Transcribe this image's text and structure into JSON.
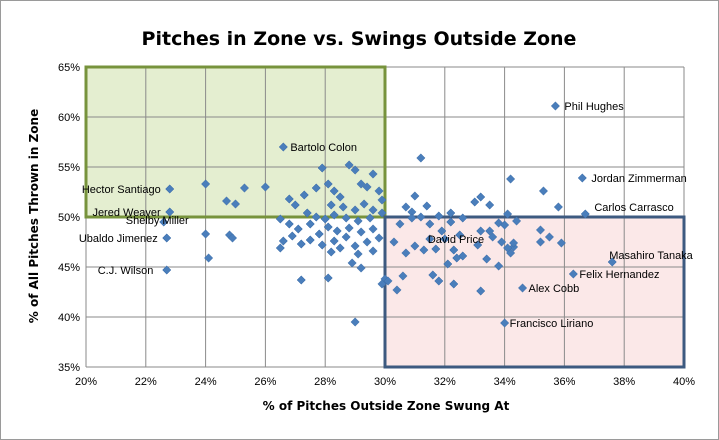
{
  "chart_data": {
    "type": "scatter",
    "title": "Pitches in Zone vs. Swings Outside Zone",
    "xlabel": "% of Pitches Outside Zone Swung At",
    "ylabel": "% of All Pitches Thrown in Zone",
    "xlim": [
      20,
      40
    ],
    "ylim": [
      35,
      65
    ],
    "x_ticks": [
      "20%",
      "22%",
      "24%",
      "26%",
      "28%",
      "30%",
      "32%",
      "34%",
      "36%",
      "38%",
      "40%"
    ],
    "y_ticks": [
      "35%",
      "40%",
      "45%",
      "50%",
      "55%",
      "60%",
      "65%"
    ],
    "grid": true,
    "marker_color": "#4a7ebb",
    "regions": [
      {
        "x": [
          20,
          30
        ],
        "y": [
          50,
          65
        ],
        "fill": "#e4eed0",
        "stroke": "#77933c"
      },
      {
        "x": [
          30,
          40
        ],
        "y": [
          35,
          50
        ],
        "fill": "#fbe8e8",
        "stroke": "#3d5a80"
      }
    ],
    "labeled_points": [
      {
        "name": "Phil Hughes",
        "x": 35.7,
        "y": 61.1
      },
      {
        "name": "Bartolo Colon",
        "x": 26.6,
        "y": 57.0
      },
      {
        "name": "Jordan Zimmerman",
        "x": 36.6,
        "y": 53.9
      },
      {
        "name": "Hector Santiago",
        "x": 22.8,
        "y": 52.8
      },
      {
        "name": "Jered Weaver",
        "x": 22.8,
        "y": 50.5
      },
      {
        "name": "Carlos Carrasco",
        "x": 36.7,
        "y": 50.3
      },
      {
        "name": "Shelby Miller",
        "x": 22.6,
        "y": 49.5
      },
      {
        "name": "Ubaldo Jimenez",
        "x": 22.7,
        "y": 47.9
      },
      {
        "name": "David Price",
        "x": 31.5,
        "y": 47.8
      },
      {
        "name": "Masahiro Tanaka",
        "x": 37.6,
        "y": 45.5
      },
      {
        "name": "C.J. Wilson",
        "x": 22.7,
        "y": 44.7
      },
      {
        "name": "Felix Hernandez",
        "x": 36.3,
        "y": 44.3
      },
      {
        "name": "Alex Cobb",
        "x": 34.6,
        "y": 42.9
      },
      {
        "name": "Francisco Liriano",
        "x": 34.0,
        "y": 39.4
      }
    ],
    "points": [
      [
        24.0,
        53.3
      ],
      [
        25.3,
        52.9
      ],
      [
        26.0,
        53.0
      ],
      [
        24.7,
        51.6
      ],
      [
        25.0,
        51.3
      ],
      [
        26.8,
        51.8
      ],
      [
        27.0,
        51.2
      ],
      [
        27.3,
        52.2
      ],
      [
        27.7,
        52.9
      ],
      [
        27.9,
        54.9
      ],
      [
        28.1,
        53.3
      ],
      [
        28.3,
        52.6
      ],
      [
        28.5,
        52.0
      ],
      [
        28.8,
        55.2
      ],
      [
        29.0,
        54.7
      ],
      [
        29.2,
        53.3
      ],
      [
        29.4,
        53.0
      ],
      [
        29.6,
        54.3
      ],
      [
        29.8,
        52.6
      ],
      [
        29.9,
        51.7
      ],
      [
        28.2,
        51.2
      ],
      [
        28.6,
        51.0
      ],
      [
        29.0,
        50.7
      ],
      [
        29.3,
        51.3
      ],
      [
        29.6,
        50.7
      ],
      [
        29.9,
        50.4
      ],
      [
        27.4,
        50.4
      ],
      [
        27.7,
        50.0
      ],
      [
        28.0,
        49.8
      ],
      [
        28.3,
        50.2
      ],
      [
        28.7,
        49.9
      ],
      [
        29.1,
        49.6
      ],
      [
        29.5,
        49.9
      ],
      [
        26.5,
        49.8
      ],
      [
        26.8,
        49.3
      ],
      [
        27.1,
        48.8
      ],
      [
        27.5,
        49.3
      ],
      [
        27.8,
        48.3
      ],
      [
        28.1,
        49.0
      ],
      [
        28.4,
        48.6
      ],
      [
        28.8,
        48.9
      ],
      [
        29.2,
        48.5
      ],
      [
        29.6,
        48.8
      ],
      [
        26.6,
        47.6
      ],
      [
        26.9,
        48.1
      ],
      [
        27.2,
        47.3
      ],
      [
        27.5,
        47.7
      ],
      [
        27.9,
        47.2
      ],
      [
        28.3,
        47.6
      ],
      [
        28.7,
        48.0
      ],
      [
        29.0,
        47.1
      ],
      [
        29.4,
        47.5
      ],
      [
        29.8,
        47.9
      ],
      [
        26.5,
        46.9
      ],
      [
        28.2,
        46.5
      ],
      [
        28.5,
        46.9
      ],
      [
        29.1,
        46.3
      ],
      [
        29.6,
        46.6
      ],
      [
        24.0,
        48.3
      ],
      [
        24.8,
        48.2
      ],
      [
        24.9,
        47.9
      ],
      [
        24.1,
        45.9
      ],
      [
        27.2,
        43.7
      ],
      [
        28.1,
        43.9
      ],
      [
        28.9,
        45.4
      ],
      [
        29.2,
        44.9
      ],
      [
        30.0,
        43.8
      ],
      [
        29.9,
        43.3
      ],
      [
        30.1,
        43.6
      ],
      [
        29.0,
        39.5
      ],
      [
        30.4,
        42.7
      ],
      [
        30.6,
        44.1
      ],
      [
        30.3,
        47.5
      ],
      [
        30.7,
        46.4
      ],
      [
        31.0,
        47.1
      ],
      [
        31.3,
        46.7
      ],
      [
        30.5,
        49.3
      ],
      [
        30.9,
        50.5
      ],
      [
        31.2,
        50.0
      ],
      [
        31.5,
        49.3
      ],
      [
        31.9,
        48.6
      ],
      [
        32.2,
        49.5
      ],
      [
        30.7,
        51.0
      ],
      [
        31.0,
        52.1
      ],
      [
        31.4,
        51.1
      ],
      [
        31.8,
        50.1
      ],
      [
        32.2,
        50.4
      ],
      [
        32.6,
        49.9
      ],
      [
        33.0,
        51.5
      ],
      [
        33.2,
        52.0
      ],
      [
        33.5,
        51.2
      ],
      [
        33.8,
        49.4
      ],
      [
        34.1,
        50.3
      ],
      [
        34.4,
        49.6
      ],
      [
        31.2,
        55.9
      ],
      [
        34.2,
        53.8
      ],
      [
        35.3,
        52.6
      ],
      [
        35.8,
        51.0
      ],
      [
        33.2,
        48.6
      ],
      [
        33.6,
        48.0
      ],
      [
        33.9,
        47.5
      ],
      [
        34.3,
        47.0
      ],
      [
        35.2,
        48.7
      ],
      [
        35.5,
        48.0
      ],
      [
        35.9,
        47.4
      ],
      [
        32.0,
        47.8
      ],
      [
        32.3,
        46.7
      ],
      [
        32.6,
        46.1
      ],
      [
        33.1,
        47.2
      ],
      [
        33.4,
        45.8
      ],
      [
        33.8,
        45.1
      ],
      [
        34.2,
        46.4
      ],
      [
        32.1,
        45.3
      ],
      [
        32.4,
        45.9
      ],
      [
        31.6,
        44.2
      ],
      [
        31.8,
        43.6
      ],
      [
        32.3,
        43.3
      ],
      [
        33.2,
        42.6
      ],
      [
        34.1,
        46.9
      ],
      [
        34.3,
        47.4
      ],
      [
        35.2,
        47.5
      ],
      [
        31.7,
        46.8
      ],
      [
        30.9,
        49.9
      ],
      [
        32.5,
        48.2
      ],
      [
        33.5,
        48.6
      ],
      [
        34.0,
        49.2
      ]
    ]
  }
}
